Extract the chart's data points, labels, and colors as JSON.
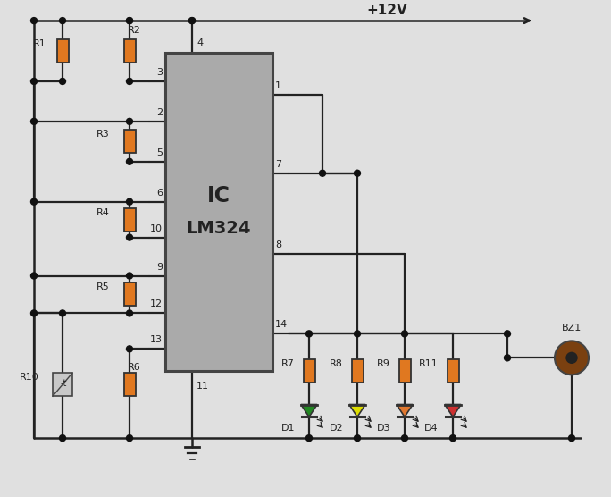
{
  "bg_color": "#e0e0e0",
  "wire_color": "#222222",
  "ic_fill": "#aaaaaa",
  "ic_edge": "#444444",
  "resistor_fill": "#e07820",
  "resistor_edge": "#333333",
  "dot_color": "#111111",
  "led_colors": [
    "#228822",
    "#dddd00",
    "#e07830",
    "#cc3030"
  ],
  "led_labels": [
    "D1",
    "D2",
    "D3",
    "D4"
  ],
  "res_output_labels": [
    "R7",
    "R8",
    "R9",
    "R11"
  ],
  "voltage_label": "+12V",
  "ic_label1": "IC",
  "ic_label2": "LM324"
}
